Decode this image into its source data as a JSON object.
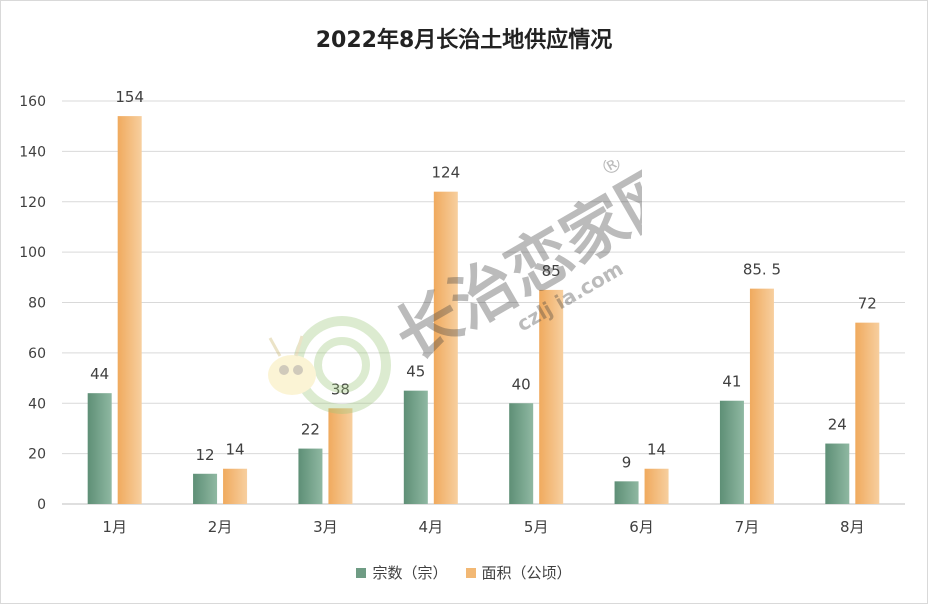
{
  "chart_data": {
    "type": "bar",
    "title": "2022年8月长治土地供应情况",
    "categories": [
      "1月",
      "2月",
      "3月",
      "4月",
      "5月",
      "6月",
      "7月",
      "8月"
    ],
    "series": [
      {
        "name": "宗数（宗）",
        "values": [
          44,
          12,
          22,
          45,
          40,
          9,
          41,
          24
        ],
        "labels": [
          "44",
          "12",
          "22",
          "45",
          "40",
          "9",
          "41",
          "24"
        ],
        "color": "#6f9c84"
      },
      {
        "name": "面积（公顷）",
        "values": [
          154,
          14,
          38,
          124,
          85,
          14,
          85.5,
          72
        ],
        "labels": [
          "154",
          "14",
          "38",
          "124",
          "85",
          "14",
          "85. 5",
          "72"
        ],
        "color": "#f2b874"
      }
    ],
    "yticks": [
      0,
      20,
      40,
      60,
      80,
      100,
      120,
      140,
      160
    ],
    "ylim": [
      0,
      160
    ],
    "grid": true,
    "legend_position": "bottom",
    "xlabel": "",
    "ylabel": ""
  },
  "watermark": {
    "text": "长治恋家网",
    "url": "czlj ia.com",
    "registered": "®"
  }
}
